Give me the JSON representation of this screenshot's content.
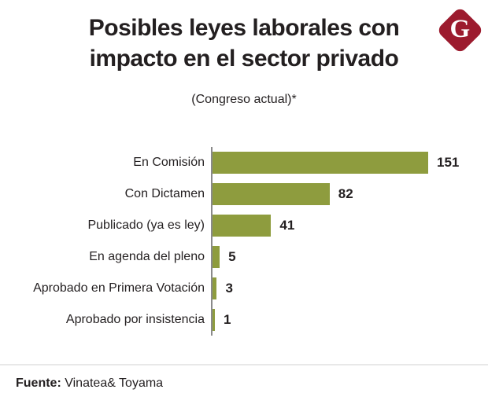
{
  "page": {
    "title_line1": "Posibles leyes laborales con",
    "title_line2": "impacto en el sector privado",
    "subtitle": "(Congreso actual)*",
    "logo_letter": "G",
    "footer": {
      "source_label": "Fuente:",
      "source_value": "Vinatea& Toyama"
    }
  },
  "colors": {
    "bar": "#8e9c3e",
    "logo": "#9c1b2e",
    "text": "#231f20",
    "axis": "#8a8a8a",
    "divider": "#e8e8e8"
  },
  "chart_data": {
    "type": "bar",
    "orientation": "horizontal",
    "title": "Posibles leyes laborales con impacto en el sector privado",
    "subtitle": "(Congreso actual)*",
    "categories": [
      "En Comisión",
      "Con Dictamen",
      "Publicado (ya es ley)",
      "En agenda del pleno",
      "Aprobado en Primera Votación",
      "Aprobado por insistencia"
    ],
    "values": [
      151,
      82,
      41,
      5,
      3,
      1
    ],
    "xlim": [
      0,
      151
    ],
    "value_labels_shown": true,
    "grid": false,
    "legend": false,
    "source": "Fuente: Vinatea& Toyama"
  }
}
